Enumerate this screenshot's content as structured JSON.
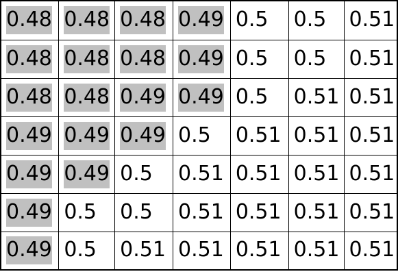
{
  "chart_data": {
    "type": "table",
    "rows": [
      [
        0.48,
        0.48,
        0.48,
        0.49,
        0.5,
        0.5,
        0.51
      ],
      [
        0.48,
        0.48,
        0.48,
        0.49,
        0.5,
        0.5,
        0.51
      ],
      [
        0.48,
        0.48,
        0.49,
        0.49,
        0.5,
        0.51,
        0.51
      ],
      [
        0.49,
        0.49,
        0.49,
        0.5,
        0.51,
        0.51,
        0.51
      ],
      [
        0.49,
        0.49,
        0.5,
        0.51,
        0.51,
        0.51,
        0.51
      ],
      [
        0.49,
        0.5,
        0.5,
        0.51,
        0.51,
        0.51,
        0.51
      ],
      [
        0.49,
        0.5,
        0.51,
        0.51,
        0.51,
        0.51,
        0.51
      ]
    ],
    "highlighted": [
      [
        true,
        true,
        true,
        true,
        false,
        false,
        false
      ],
      [
        true,
        true,
        true,
        true,
        false,
        false,
        false
      ],
      [
        true,
        true,
        true,
        true,
        false,
        false,
        false
      ],
      [
        true,
        true,
        true,
        false,
        false,
        false,
        false
      ],
      [
        true,
        true,
        false,
        false,
        false,
        false,
        false
      ],
      [
        true,
        false,
        false,
        false,
        false,
        false,
        false
      ],
      [
        true,
        false,
        false,
        false,
        false,
        false,
        false
      ]
    ],
    "colors": {
      "highlight": "#c0c0c0",
      "border": "#000000",
      "text": "#000000",
      "background": "#ffffff"
    }
  }
}
